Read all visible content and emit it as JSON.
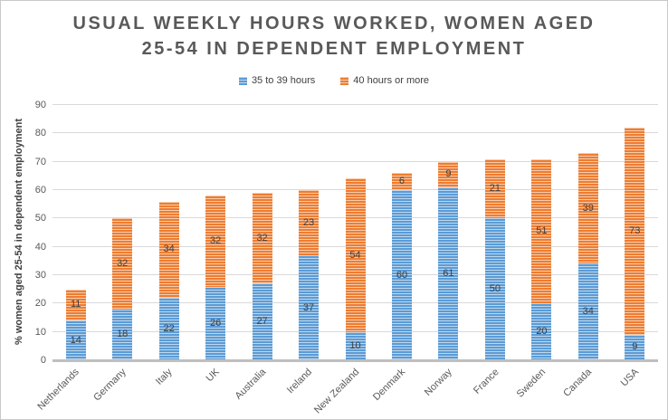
{
  "title": {
    "line1": "USUAL WEEKLY HOURS WORKED, WOMEN AGED",
    "line2": "25-54 IN DEPENDENT EMPLOYMENT"
  },
  "colors": {
    "title_text": "#595959",
    "blue_fill": "#5b9bd5",
    "blue_stripe": "#bdd7ee",
    "orange_fill": "#ed7d31",
    "orange_stripe": "#f8cbad",
    "gridline": "#d9d9d9",
    "axis_line": "#bfbfbf",
    "label_text": "#404040"
  },
  "chart_data": {
    "type": "bar",
    "stacked": true,
    "title": "USUAL WEEKLY HOURS WORKED, WOMEN AGED 25-54 IN DEPENDENT EMPLOYMENT",
    "xlabel": "",
    "ylabel": "% women aged 25-54 in dependent employment",
    "ylim": [
      0,
      90
    ],
    "yticks": [
      0,
      10,
      20,
      30,
      40,
      50,
      60,
      70,
      80,
      90
    ],
    "grid": true,
    "legend_position": "top",
    "categories": [
      "Netherlands",
      "Germany",
      "Italy",
      "UK",
      "Australia",
      "Ireland",
      "New Zealand",
      "Denmark",
      "Norway",
      "France",
      "Sweden",
      "Canada",
      "USA"
    ],
    "series": [
      {
        "name": "35 to 39 hours",
        "color": "#5b9bd5",
        "stripe_color": "#bdd7ee",
        "values": [
          14,
          18,
          22,
          26,
          27,
          37,
          10,
          60,
          61,
          50,
          20,
          34,
          9
        ]
      },
      {
        "name": "40 hours or more",
        "color": "#ed7d31",
        "stripe_color": "#f8cbad",
        "values": [
          11,
          32,
          34,
          32,
          32,
          23,
          54,
          6,
          9,
          21,
          51,
          39,
          73
        ]
      }
    ],
    "data_labels_shown": true
  }
}
